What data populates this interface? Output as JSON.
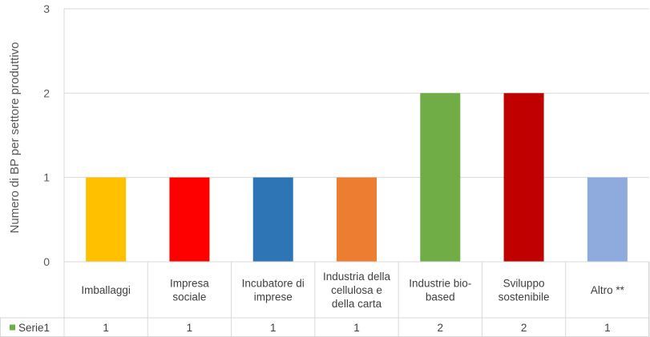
{
  "chart_data": {
    "type": "bar",
    "title": "",
    "ylabel": "Numero di BP per settore produttivo",
    "xlabel": "",
    "ylim": [
      0,
      3
    ],
    "yticks": [
      0,
      1,
      2,
      3
    ],
    "grid": true,
    "legend": "data-table",
    "categories": [
      [
        "Imballaggi"
      ],
      [
        "Impresa",
        "sociale"
      ],
      [
        "Incubatore di",
        "imprese"
      ],
      [
        "Industria della",
        "cellulosa e",
        "della carta"
      ],
      [
        "Industrie bio-",
        "based"
      ],
      [
        "Sviluppo",
        "sostenibile"
      ],
      [
        "Altro **"
      ]
    ],
    "series": [
      {
        "name": "Serie1",
        "values": [
          1,
          1,
          1,
          1,
          2,
          2,
          1
        ]
      }
    ],
    "bar_colors": [
      "#ffc000",
      "#ff0000",
      "#2e75b6",
      "#ed7d31",
      "#70ad47",
      "#c00000",
      "#8faadc"
    ],
    "legend_color": "#70ad47"
  }
}
